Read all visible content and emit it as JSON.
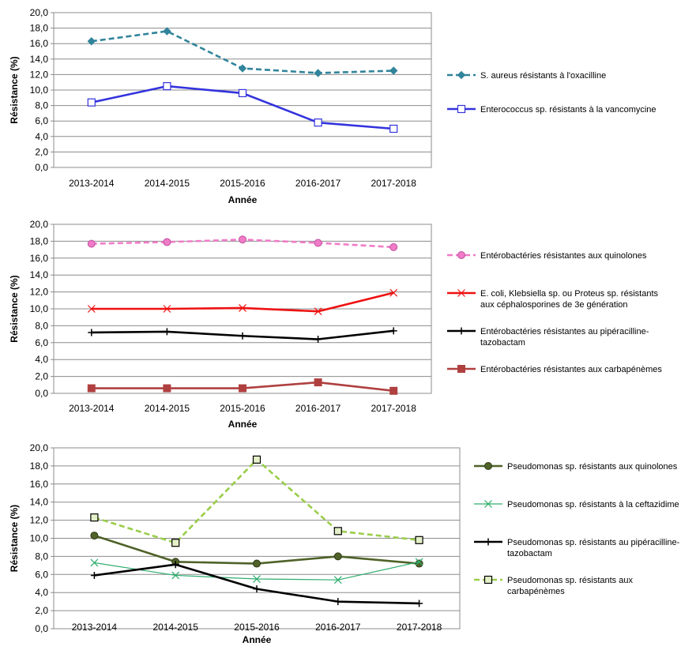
{
  "chart_data": [
    {
      "type": "line",
      "xlabel": "Année",
      "ylabel": "Résistance (%)",
      "ylim": [
        0,
        20
      ],
      "ytick_step": 2,
      "grid": true,
      "legend_position": "right",
      "categories": [
        "2013-2014",
        "2014-2015",
        "2015-2016",
        "2016-2017",
        "2017-2018"
      ],
      "series": [
        {
          "name": "S. aureus résistants à l'oxacilline",
          "values": [
            16.3,
            17.6,
            12.8,
            12.2,
            12.5
          ],
          "color": "#31849B",
          "dash": true,
          "marker": "diamond",
          "lines": [
            "S. aureus résistants à l'oxacilline"
          ]
        },
        {
          "name": "Enterococcus sp. résistants à la vancomycine",
          "values": [
            8.4,
            10.5,
            9.6,
            5.8,
            5.0
          ],
          "color": "#3333DD",
          "dash": false,
          "marker": "square-open",
          "lines": [
            "Enterococcus sp. résistants à la vancomycine"
          ]
        }
      ]
    },
    {
      "type": "line",
      "xlabel": "Année",
      "ylabel": "Résistance (%)",
      "ylim": [
        0,
        20
      ],
      "ytick_step": 2,
      "grid": true,
      "legend_position": "right",
      "categories": [
        "2013-2014",
        "2014-2015",
        "2015-2016",
        "2016-2017",
        "2017-2018"
      ],
      "series": [
        {
          "name": "Entérobactéries résistantes aux quinolones",
          "values": [
            17.7,
            17.9,
            18.2,
            17.8,
            17.3
          ],
          "color": "#F07CC8",
          "dash": true,
          "marker": "circle",
          "lines": [
            "Entérobactéries résistantes aux quinolones"
          ]
        },
        {
          "name": "E. coli, Klebsiella sp. ou Proteus sp. résistants aux céphalosporines de 3e génération",
          "values": [
            10.0,
            10.0,
            10.1,
            9.7,
            11.9
          ],
          "color": "#EE1111",
          "dash": false,
          "marker": "x",
          "lines": [
            "E. coli, Klebsiella sp. ou Proteus sp. résistants",
            "aux céphalosporines de 3e génération"
          ]
        },
        {
          "name": "Entérobactéries résistantes au pipéracilline-tazobactam",
          "values": [
            7.2,
            7.3,
            6.8,
            6.4,
            7.4
          ],
          "color": "#000000",
          "dash": false,
          "marker": "plus",
          "lines": [
            "Entérobactéries résistantes au pipéracilline-",
            "tazobactam"
          ]
        },
        {
          "name": "Entérobactéries résistantes aux carbapénèmes",
          "values": [
            0.6,
            0.6,
            0.6,
            1.3,
            0.3
          ],
          "color": "#B04040",
          "dash": false,
          "marker": "square",
          "lines": [
            "Entérobactéries résistantes aux carbapénèmes"
          ]
        }
      ]
    },
    {
      "type": "line",
      "xlabel": "Année",
      "ylabel": "Résistance (%)",
      "ylim": [
        0,
        20
      ],
      "ytick_step": 2,
      "grid": true,
      "legend_position": "right",
      "categories": [
        "2013-2014",
        "2014-2015",
        "2015-2016",
        "2016-2017",
        "2017-2018"
      ],
      "series": [
        {
          "name": "Pseudomonas sp. résistants aux quinolones",
          "values": [
            10.3,
            7.4,
            7.2,
            8.0,
            7.2
          ],
          "color": "#4F6228",
          "dash": false,
          "marker": "circle",
          "lines": [
            "Pseudomonas sp. résistants aux quinolones"
          ]
        },
        {
          "name": "Pseudomonas sp. résistants à la ceftazidime",
          "values": [
            7.3,
            5.9,
            5.5,
            5.4,
            7.4
          ],
          "color": "#2EAD6E",
          "dash": false,
          "marker": "x",
          "lines": [
            "Pseudomonas sp. résistants à la ceftazidime"
          ]
        },
        {
          "name": "Pseudomonas sp. résistants au pipéracilline-tazobactam",
          "values": [
            5.9,
            7.1,
            4.4,
            3.0,
            2.8
          ],
          "color": "#000000",
          "dash": false,
          "marker": "plus",
          "lines": [
            "Pseudomonas sp. résistants au pipéracilline-",
            "tazobactam"
          ]
        },
        {
          "name": "Pseudomonas sp. résistants aux carbapénèmes",
          "values": [
            12.3,
            9.5,
            18.7,
            10.8,
            9.8
          ],
          "color": "#9ACD4A",
          "dash": true,
          "marker": "square-open",
          "lines": [
            "Pseudomonas sp. résistants aux",
            "carbapénèmes"
          ]
        }
      ]
    }
  ]
}
